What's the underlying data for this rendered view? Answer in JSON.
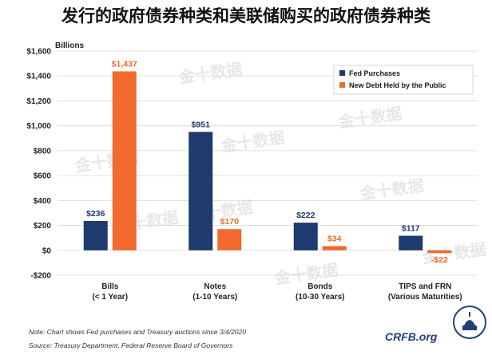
{
  "title": "发行的政府债券种类和美联储购买的政府债券种类",
  "note": "Note: Chart shows Fed purchases and Treasury auctions since 3/4/2020",
  "source": "Source: Treasury Department, Federal Reserve Board of Governors",
  "brand": "CRFB.org",
  "watermark_text": "金十数据",
  "colors": {
    "fed": "#1f3a6e",
    "public": "#f26a2e",
    "grid": "#d9d9d9"
  },
  "chart_data": {
    "type": "bar",
    "unit_label": "Billions",
    "categories": [
      [
        "Bills",
        "(< 1 Year)"
      ],
      [
        "Notes",
        "(1-10 Years)"
      ],
      [
        "Bonds",
        "(10-30 Years)"
      ],
      [
        "TIPS and FRN",
        "(Various Maturities)"
      ]
    ],
    "series": [
      {
        "name": "Fed Purchases",
        "values": [
          236,
          951,
          222,
          117
        ],
        "labels": [
          "$236",
          "$951",
          "$222",
          "$117"
        ]
      },
      {
        "name": "New Debt Held by the Public",
        "values": [
          1437,
          170,
          34,
          -22
        ],
        "labels": [
          "$1,437",
          "$170",
          "$34",
          "-$22"
        ]
      }
    ],
    "ylim": [
      -200,
      1600
    ],
    "yticks": [
      -200,
      0,
      200,
      400,
      600,
      800,
      1000,
      1200,
      1400,
      1600
    ],
    "ytick_labels": [
      "-$200",
      "$0",
      "$200",
      "$400",
      "$600",
      "$800",
      "$1,000",
      "$1,200",
      "$1,400",
      "$1,600"
    ],
    "grid": true,
    "legend_position": "top-right"
  }
}
